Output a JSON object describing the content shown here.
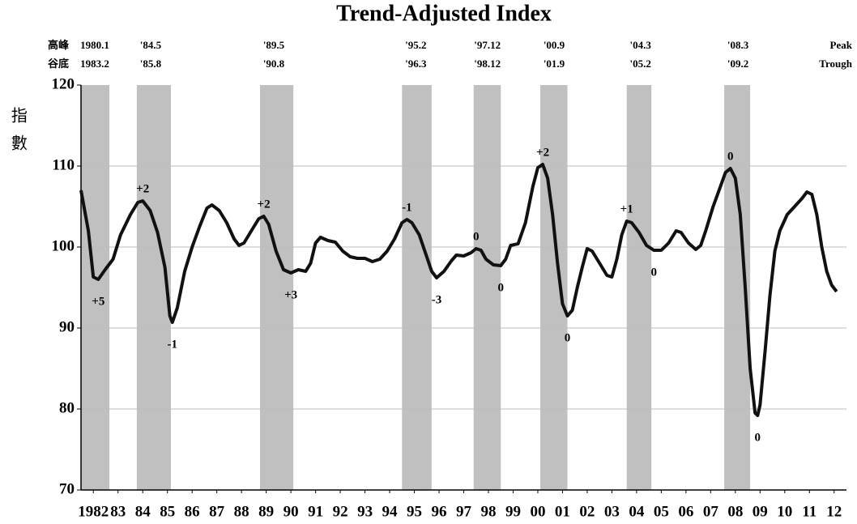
{
  "chart_data": {
    "type": "line",
    "title": "Trend-Adjusted Index",
    "y_label": "指數",
    "peak_row_label": "高峰",
    "trough_row_label": "谷底",
    "peak_row_label_en": "Peak",
    "trough_row_label_en": "Trough",
    "xlim": [
      1982,
      2013
    ],
    "ylim": [
      70,
      120
    ],
    "yticks": [
      70,
      80,
      90,
      100,
      110,
      120
    ],
    "xticks": [
      {
        "value": 1982.5,
        "label": "1982"
      },
      {
        "value": 1983.5,
        "label": "83"
      },
      {
        "value": 1984.5,
        "label": "84"
      },
      {
        "value": 1985.5,
        "label": "85"
      },
      {
        "value": 1986.5,
        "label": "86"
      },
      {
        "value": 1987.5,
        "label": "87"
      },
      {
        "value": 1988.5,
        "label": "88"
      },
      {
        "value": 1989.5,
        "label": "89"
      },
      {
        "value": 1990.5,
        "label": "90"
      },
      {
        "value": 1991.5,
        "label": "91"
      },
      {
        "value": 1992.5,
        "label": "92"
      },
      {
        "value": 1993.5,
        "label": "93"
      },
      {
        "value": 1994.5,
        "label": "94"
      },
      {
        "value": 1995.5,
        "label": "95"
      },
      {
        "value": 1996.5,
        "label": "96"
      },
      {
        "value": 1997.5,
        "label": "97"
      },
      {
        "value": 1998.5,
        "label": "98"
      },
      {
        "value": 1999.5,
        "label": "99"
      },
      {
        "value": 2000.5,
        "label": "00"
      },
      {
        "value": 2001.5,
        "label": "01"
      },
      {
        "value": 2002.5,
        "label": "02"
      },
      {
        "value": 2003.5,
        "label": "03"
      },
      {
        "value": 2004.5,
        "label": "04"
      },
      {
        "value": 2005.5,
        "label": "05"
      },
      {
        "value": 2006.5,
        "label": "06"
      },
      {
        "value": 2007.5,
        "label": "07"
      },
      {
        "value": 2008.5,
        "label": "08"
      },
      {
        "value": 2009.5,
        "label": "09"
      },
      {
        "value": 2010.5,
        "label": "10"
      },
      {
        "value": 2011.5,
        "label": "11"
      },
      {
        "value": 2012.5,
        "label": "12"
      }
    ],
    "grid": true,
    "band_color": "#c0c0c0",
    "cycles": [
      {
        "peak": "1980.1",
        "trough": "1983.2",
        "start": 1982.0,
        "end": 1983.15,
        "trough_lead": "+5"
      },
      {
        "peak": "'84.5",
        "trough": "'85.8",
        "start": 1984.26,
        "end": 1985.64,
        "peak_lead": "+2",
        "trough_lead": "-1"
      },
      {
        "peak": "'89.5",
        "trough": "'90.8",
        "start": 1989.25,
        "end": 1990.6,
        "peak_lead": "+2",
        "trough_lead": "+3"
      },
      {
        "peak": "'95.2",
        "trough": "'96.3",
        "start": 1995.0,
        "end": 1996.2,
        "peak_lead": "-1",
        "trough_lead": "-3"
      },
      {
        "peak": "'97.12",
        "trough": "'98.12",
        "start": 1997.9,
        "end": 1999.0,
        "peak_lead": "0",
        "trough_lead": "0"
      },
      {
        "peak": "'00.9",
        "trough": "'01.9",
        "start": 2000.6,
        "end": 2001.7,
        "peak_lead": "+2",
        "trough_lead": "0"
      },
      {
        "peak": "'04.3",
        "trough": "'05.2",
        "start": 2004.1,
        "end": 2005.1,
        "peak_lead": "+1",
        "trough_lead": "0"
      },
      {
        "peak": "'08.3",
        "trough": "'09.2",
        "start": 2008.05,
        "end": 2009.1,
        "peak_lead": "0",
        "trough_lead": "0"
      }
    ],
    "series": [
      {
        "name": "Trend-Adjusted Index",
        "color": "#111111",
        "x": [
          1982.0,
          1982.3,
          1982.5,
          1982.7,
          1983.0,
          1983.3,
          1983.6,
          1984.0,
          1984.3,
          1984.5,
          1984.8,
          1985.1,
          1985.4,
          1985.6,
          1985.7,
          1985.9,
          1986.2,
          1986.5,
          1986.8,
          1987.1,
          1987.3,
          1987.6,
          1987.9,
          1988.2,
          1988.4,
          1988.6,
          1988.9,
          1989.2,
          1989.4,
          1989.6,
          1989.9,
          1990.2,
          1990.5,
          1990.8,
          1991.1,
          1991.3,
          1991.5,
          1991.7,
          1992.0,
          1992.3,
          1992.6,
          1992.9,
          1993.2,
          1993.5,
          1993.8,
          1994.1,
          1994.4,
          1994.7,
          1995.0,
          1995.2,
          1995.4,
          1995.7,
          1996.0,
          1996.2,
          1996.4,
          1996.7,
          1997.0,
          1997.2,
          1997.5,
          1997.8,
          1998.0,
          1998.2,
          1998.4,
          1998.7,
          1999.0,
          1999.2,
          1999.4,
          1999.7,
          2000.0,
          2000.3,
          2000.5,
          2000.7,
          2000.9,
          2001.1,
          2001.3,
          2001.5,
          2001.7,
          2001.9,
          2002.1,
          2002.3,
          2002.5,
          2002.7,
          2003.0,
          2003.3,
          2003.5,
          2003.7,
          2003.9,
          2004.1,
          2004.3,
          2004.6,
          2004.9,
          2005.2,
          2005.5,
          2005.8,
          2006.1,
          2006.3,
          2006.6,
          2006.9,
          2007.1,
          2007.3,
          2007.6,
          2007.9,
          2008.1,
          2008.3,
          2008.5,
          2008.7,
          2008.9,
          2009.1,
          2009.3,
          2009.4,
          2009.5,
          2009.7,
          2009.9,
          2010.1,
          2010.3,
          2010.6,
          2010.9,
          2011.2,
          2011.4,
          2011.6,
          2011.8,
          2012.0,
          2012.2,
          2012.4,
          2012.6
        ],
        "values": [
          107,
          102,
          96.3,
          96,
          97.3,
          98.5,
          101.5,
          104,
          105.5,
          105.7,
          104.5,
          101.8,
          97.5,
          91.5,
          90.7,
          92.5,
          97,
          100,
          102.5,
          104.8,
          105.2,
          104.5,
          103,
          101,
          100.2,
          100.5,
          102,
          103.5,
          103.8,
          102.8,
          99.5,
          97.2,
          96.8,
          97.2,
          97.0,
          98,
          100.5,
          101.2,
          100.8,
          100.6,
          99.5,
          98.8,
          98.6,
          98.6,
          98.2,
          98.5,
          99.5,
          101,
          103,
          103.4,
          103,
          101.5,
          98.8,
          97,
          96.2,
          97,
          98.3,
          99,
          98.9,
          99.3,
          99.8,
          99.6,
          98.5,
          97.8,
          97.7,
          98.5,
          100.2,
          100.4,
          103,
          107.5,
          109.8,
          110.2,
          108.5,
          104,
          98,
          93,
          91.5,
          92.2,
          95,
          97.5,
          99.8,
          99.5,
          98,
          96.5,
          96.3,
          98.5,
          101.5,
          103.2,
          103,
          101.8,
          100.2,
          99.6,
          99.6,
          100.5,
          102,
          101.8,
          100.5,
          99.7,
          100.2,
          102,
          105,
          107.5,
          109.2,
          109.7,
          108.5,
          104,
          95,
          85,
          79.5,
          79.2,
          80.5,
          87,
          94,
          99.5,
          102,
          104,
          105,
          106,
          106.8,
          106.5,
          104,
          100,
          97,
          95.3,
          94.5
        ]
      }
    ]
  }
}
